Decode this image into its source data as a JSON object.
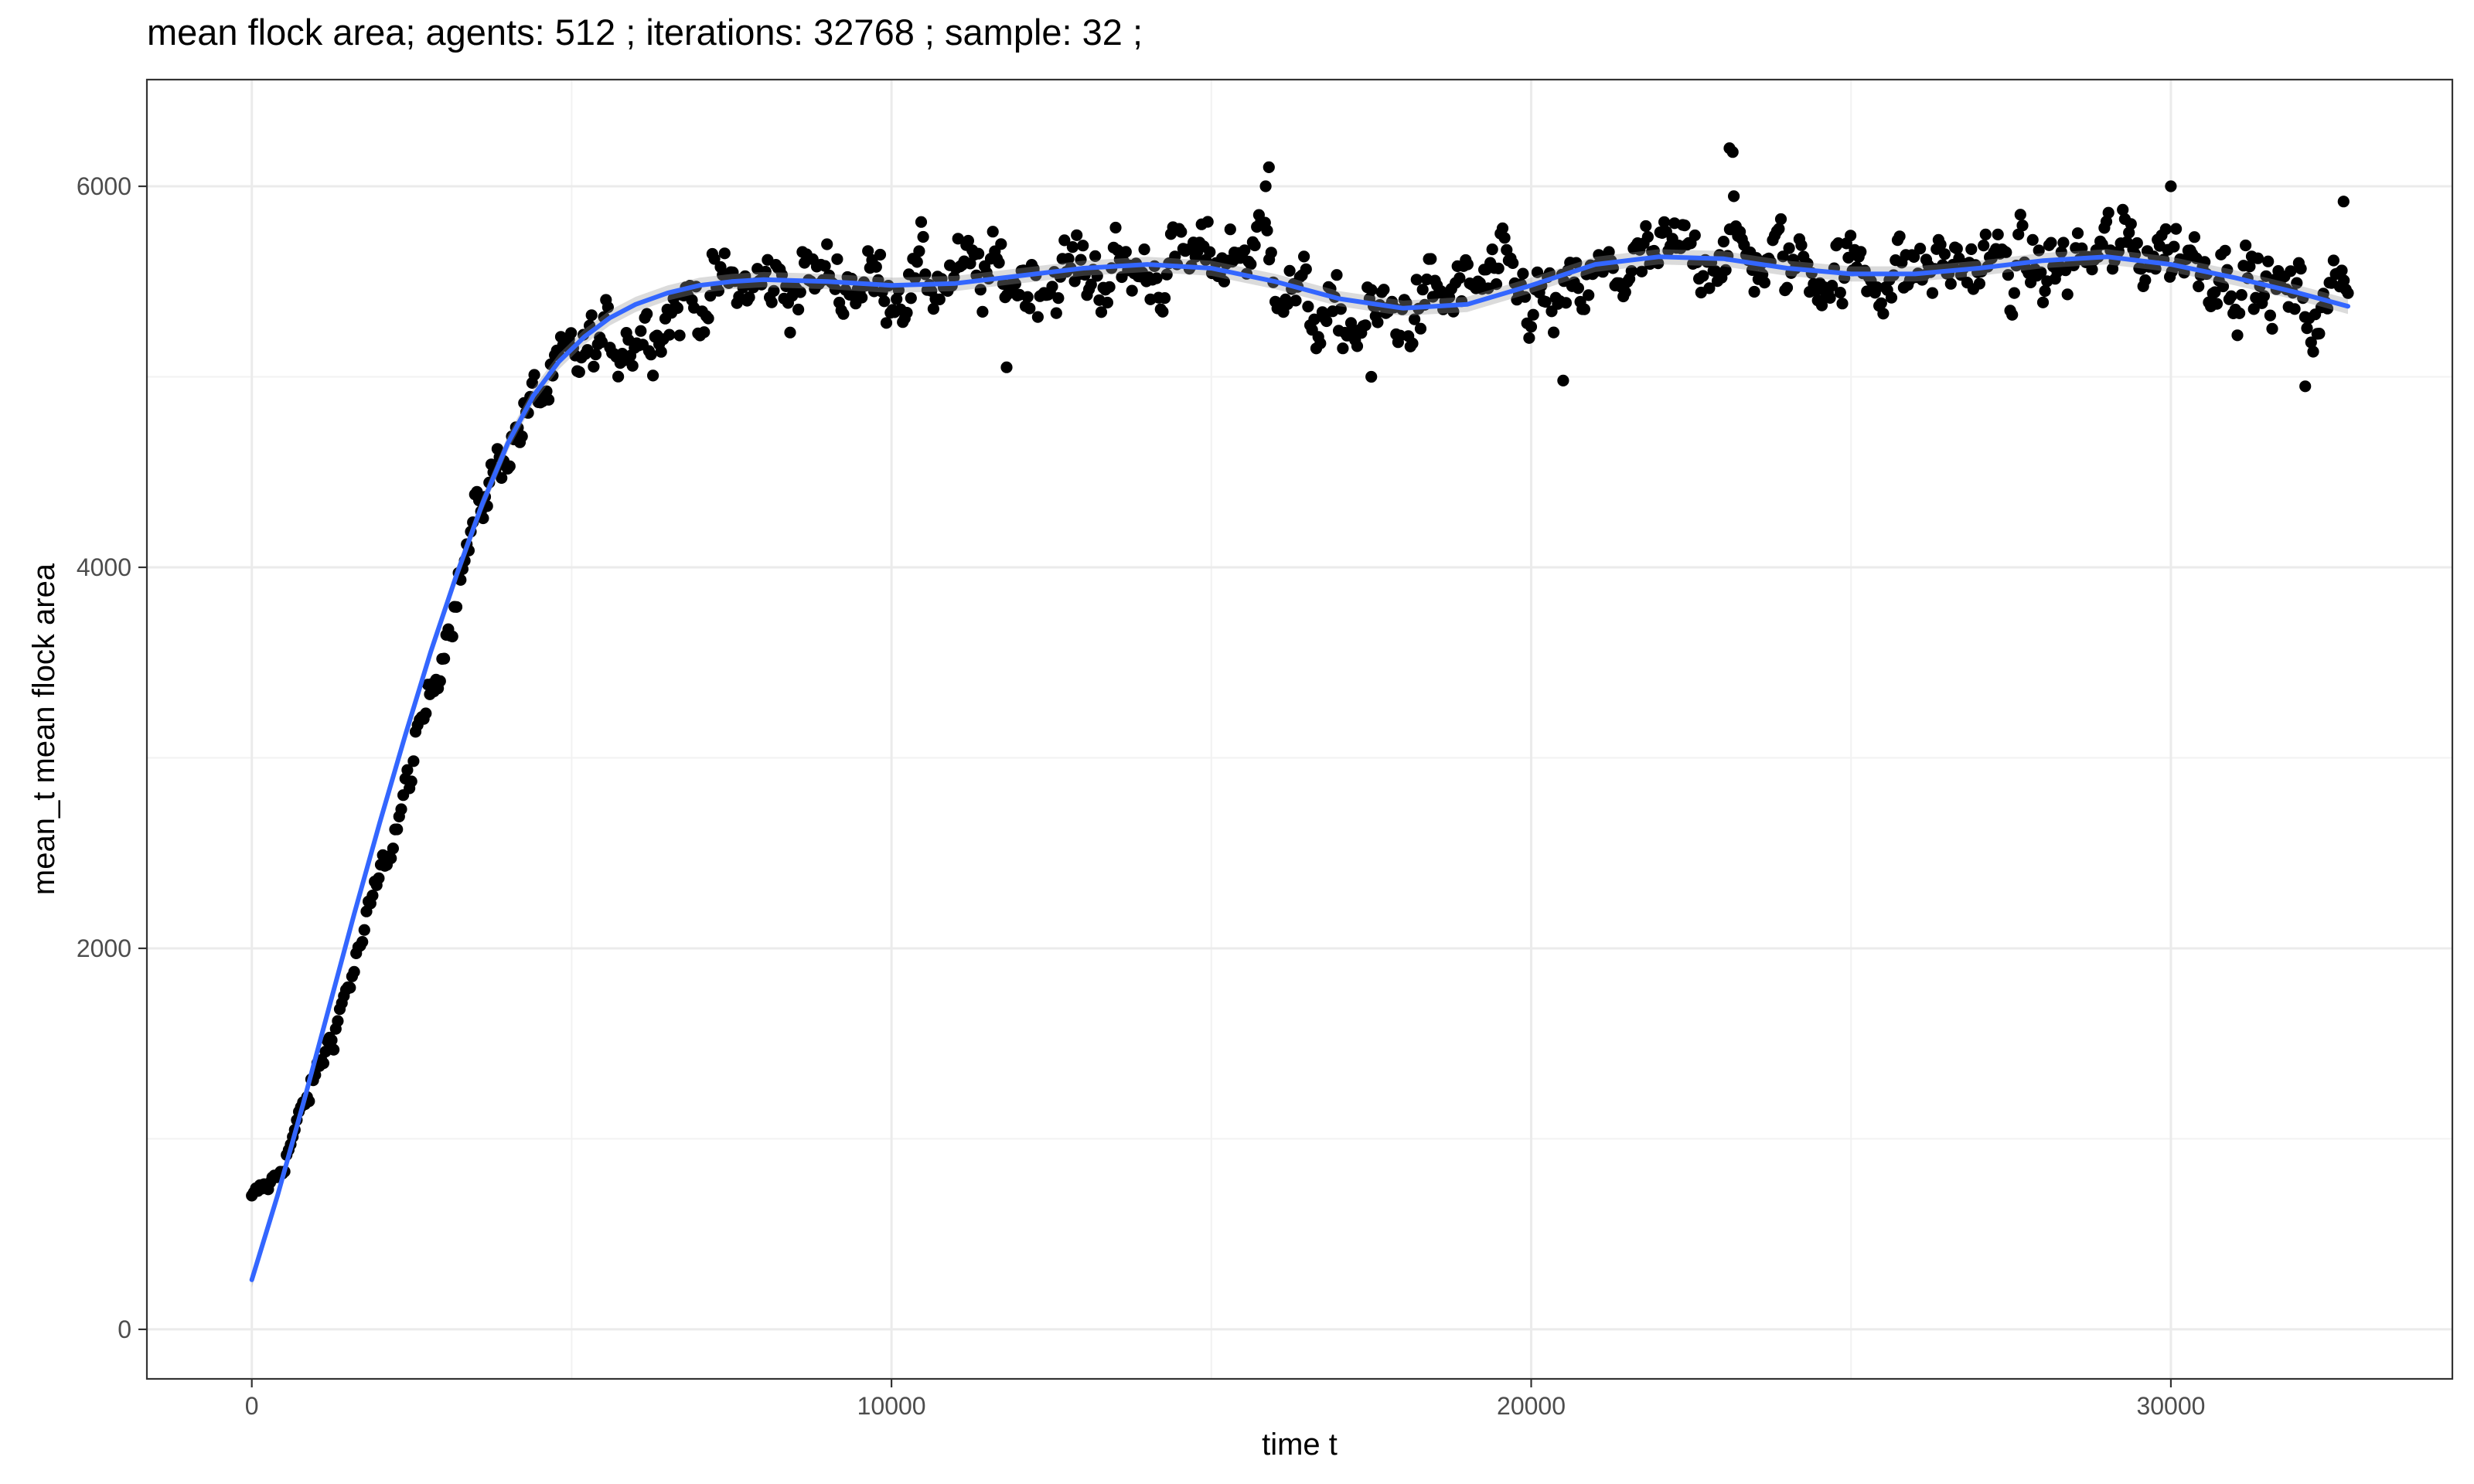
{
  "chart_data": {
    "type": "scatter",
    "title": "mean flock area; agents: 512 ; iterations: 32768 ; sample: 32 ;",
    "xlabel": "time t",
    "ylabel": "mean_t mean flock area",
    "xlim": [
      -1640,
      34400
    ],
    "ylim": [
      -260,
      6560
    ],
    "x_ticks": [
      0,
      10000,
      20000,
      30000
    ],
    "x_tick_labels": [
      "0",
      "10000",
      "20000",
      "30000"
    ],
    "y_ticks": [
      0,
      2000,
      4000,
      6000
    ],
    "y_tick_labels": [
      "0",
      "2000",
      "4000",
      "6000"
    ],
    "grid": true,
    "theme": "ggplot2 theme_bw",
    "point_color": "#000000",
    "smooth_color": "#3366FF",
    "series": [
      {
        "kind": "points",
        "sampling_interval": 32,
        "trend_knots": [
          [
            0,
            680
          ],
          [
            400,
            800
          ],
          [
            800,
            1150
          ],
          [
            1200,
            1500
          ],
          [
            1600,
            1900
          ],
          [
            2000,
            2350
          ],
          [
            2400,
            2800
          ],
          [
            2800,
            3350
          ],
          [
            3200,
            3900
          ],
          [
            3600,
            4350
          ],
          [
            4000,
            4650
          ],
          [
            4400,
            4850
          ],
          [
            4800,
            5000
          ],
          [
            5200,
            5120
          ],
          [
            5600,
            5180
          ],
          [
            6000,
            5250
          ],
          [
            6500,
            5350
          ],
          [
            7000,
            5420
          ],
          [
            7500,
            5460
          ],
          [
            8000,
            5480
          ],
          [
            9000,
            5520
          ],
          [
            10000,
            5500
          ],
          [
            11000,
            5520
          ],
          [
            12000,
            5520
          ],
          [
            13000,
            5550
          ],
          [
            14000,
            5560
          ],
          [
            15000,
            5620
          ],
          [
            15800,
            5700
          ],
          [
            16500,
            5350
          ],
          [
            17000,
            5250
          ],
          [
            17500,
            5300
          ],
          [
            18000,
            5330
          ],
          [
            18500,
            5400
          ],
          [
            19000,
            5450
          ],
          [
            19500,
            5500
          ],
          [
            20000,
            5400
          ],
          [
            20500,
            5350
          ],
          [
            21000,
            5500
          ],
          [
            21500,
            5550
          ],
          [
            22000,
            5600
          ],
          [
            22500,
            5650
          ],
          [
            23000,
            5700
          ],
          [
            23500,
            5620
          ],
          [
            24000,
            5600
          ],
          [
            25000,
            5550
          ],
          [
            26000,
            5560
          ],
          [
            27000,
            5600
          ],
          [
            28000,
            5550
          ],
          [
            29000,
            5650
          ],
          [
            30000,
            5680
          ],
          [
            31000,
            5550
          ],
          [
            31500,
            5450
          ],
          [
            32000,
            5400
          ],
          [
            32400,
            5300
          ],
          [
            32700,
            5600
          ]
        ],
        "noise_amplitude": 200,
        "highlights": [
          [
            15900,
            6100
          ],
          [
            23100,
            6200
          ],
          [
            23150,
            6180
          ],
          [
            15850,
            6000
          ],
          [
            30000,
            6000
          ],
          [
            32100,
            4950
          ],
          [
            20500,
            4980
          ],
          [
            17500,
            5000
          ],
          [
            11800,
            5050
          ],
          [
            32700,
            5920
          ]
        ]
      },
      {
        "kind": "smooth",
        "x": [
          0,
          400,
          800,
          1200,
          1600,
          2000,
          2400,
          2800,
          3200,
          3600,
          4000,
          4400,
          4800,
          5200,
          5600,
          6000,
          6500,
          7000,
          7500,
          8000,
          9000,
          10000,
          11000,
          12000,
          13000,
          14000,
          15000,
          16000,
          17000,
          18000,
          19000,
          20000,
          21000,
          22000,
          23000,
          24000,
          25000,
          26000,
          27000,
          28000,
          29000,
          30000,
          31000,
          32000,
          32768
        ],
        "y": [
          260,
          700,
          1180,
          1680,
          2180,
          2660,
          3120,
          3560,
          3960,
          4330,
          4650,
          4900,
          5080,
          5210,
          5310,
          5380,
          5440,
          5480,
          5500,
          5510,
          5500,
          5480,
          5490,
          5530,
          5570,
          5590,
          5570,
          5500,
          5410,
          5360,
          5380,
          5480,
          5590,
          5630,
          5620,
          5570,
          5540,
          5540,
          5570,
          5610,
          5630,
          5590,
          5520,
          5440,
          5370
        ]
      }
    ]
  }
}
